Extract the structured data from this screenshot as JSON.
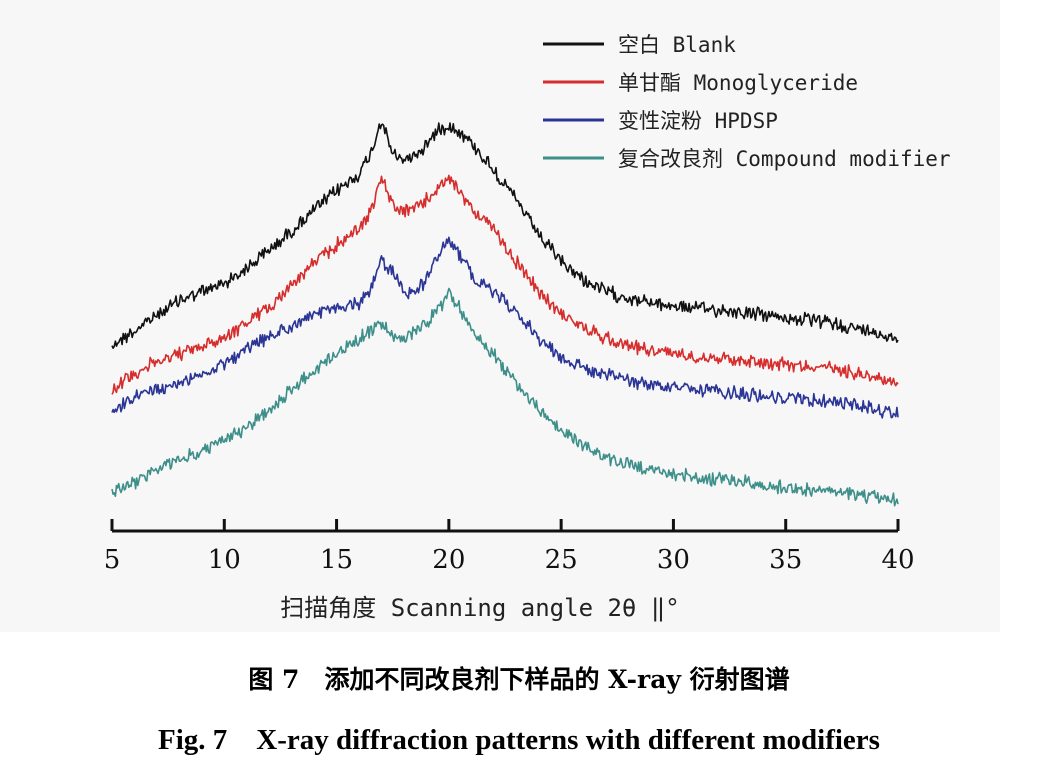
{
  "chart_data": {
    "type": "line",
    "xlabel": "扫描角度 Scanning angle 2θ ‖°",
    "ylabel": "",
    "xlim": [
      5,
      40
    ],
    "x_ticks": [
      "5",
      "10",
      "15",
      "20",
      "25",
      "30",
      "35",
      "40"
    ],
    "grid": false,
    "y_axis_shown": false,
    "legend_position": "top-right",
    "x": [
      5,
      6,
      7,
      8,
      9,
      10,
      11,
      12,
      13,
      14,
      15,
      16,
      16.5,
      17,
      17.5,
      18,
      18.5,
      19,
      19.5,
      20,
      20.5,
      21,
      22,
      23,
      24,
      25,
      26,
      27,
      28,
      29,
      30,
      31,
      32,
      33,
      34,
      35,
      36,
      37,
      38,
      39,
      40
    ],
    "series": [
      {
        "name": "空白 Blank",
        "color": "#111111",
        "values": [
          345,
          331,
          315,
          300,
          292,
          283,
          268,
          250,
          231,
          210,
          191,
          174,
          155,
          120,
          155,
          160,
          155,
          145,
          130,
          125,
          132,
          143,
          170,
          200,
          235,
          262,
          280,
          292,
          298,
          303,
          306,
          308,
          310,
          312,
          315,
          318,
          320,
          323,
          328,
          333,
          338
        ]
      },
      {
        "name": "单甘酯 Monoglyceride",
        "color": "#d62d2d",
        "values": [
          390,
          373,
          362,
          354,
          347,
          337,
          323,
          307,
          285,
          263,
          245,
          228,
          212,
          178,
          205,
          212,
          208,
          200,
          188,
          180,
          192,
          207,
          230,
          262,
          292,
          313,
          328,
          338,
          345,
          350,
          353,
          356,
          358,
          360,
          362,
          364,
          366,
          368,
          372,
          377,
          382
        ]
      },
      {
        "name": "变性淀粉 HPDSP",
        "color": "#2b3595",
        "values": [
          413,
          398,
          389,
          384,
          374,
          363,
          350,
          337,
          326,
          315,
          308,
          303,
          290,
          260,
          272,
          292,
          292,
          280,
          255,
          238,
          255,
          275,
          292,
          312,
          338,
          357,
          368,
          375,
          380,
          385,
          388,
          390,
          392,
          394,
          396,
          398,
          400,
          402,
          405,
          409,
          413
        ]
      },
      {
        "name": "复合改良剂 Compound modifier",
        "color": "#3e8f8a",
        "values": [
          492,
          482,
          470,
          460,
          452,
          440,
          428,
          410,
          390,
          370,
          353,
          340,
          330,
          325,
          335,
          340,
          332,
          322,
          310,
          293,
          310,
          328,
          355,
          383,
          410,
          430,
          446,
          458,
          465,
          470,
          474,
          477,
          480,
          482,
          485,
          488,
          490,
          492,
          495,
          498,
          500
        ]
      }
    ]
  },
  "caption": {
    "cn": "图 7　添加不同改良剂下样品的 X-ray 衍射图谱",
    "en": "Fig. 7　X-ray diffraction patterns with different modifiers"
  }
}
